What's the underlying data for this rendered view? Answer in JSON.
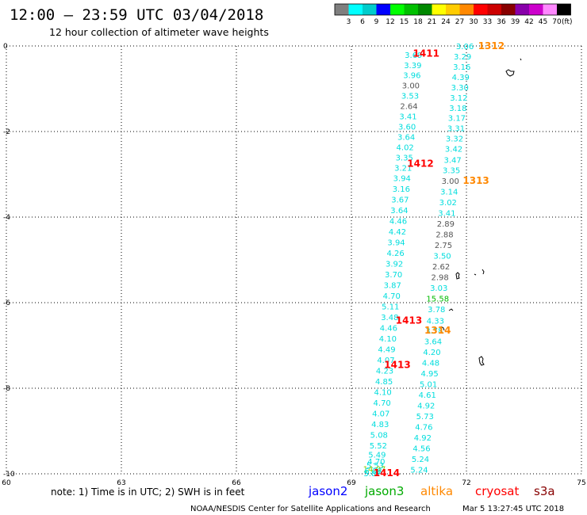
{
  "header": {
    "title": "12:00 — 23:59 UTC 03/04/2018",
    "subtitle": "12 hour collection of altimeter wave heights"
  },
  "legend": {
    "unit": "(ft)",
    "bins": [
      {
        "label": "3",
        "color": "#7f7f7f"
      },
      {
        "label": "6",
        "color": "#00ffff"
      },
      {
        "label": "9",
        "color": "#00cccc"
      },
      {
        "label": "12",
        "color": "#0000ff"
      },
      {
        "label": "15",
        "color": "#00ff00"
      },
      {
        "label": "18",
        "color": "#00c000"
      },
      {
        "label": "21",
        "color": "#008800"
      },
      {
        "label": "24",
        "color": "#ffff00"
      },
      {
        "label": "27",
        "color": "#ffcc00"
      },
      {
        "label": "30",
        "color": "#ff8800"
      },
      {
        "label": "33",
        "color": "#ff0000"
      },
      {
        "label": "36",
        "color": "#cc0000"
      },
      {
        "label": "39",
        "color": "#880000"
      },
      {
        "label": "42",
        "color": "#8800aa"
      },
      {
        "label": "45",
        "color": "#cc00cc"
      },
      {
        "label": "70",
        "color": "#ff88ff"
      },
      {
        "label": "",
        "color": "#000000"
      }
    ]
  },
  "axes": {
    "lat_ticks": [
      "0",
      "-2",
      "-4",
      "-6",
      "-8",
      "-10"
    ],
    "lon_ticks": [
      "60",
      "63",
      "66",
      "69",
      "72",
      "75"
    ]
  },
  "chart_data": {
    "type": "scatter",
    "xlabel": "",
    "ylabel": "",
    "xlim": [
      60,
      75
    ],
    "ylim": [
      -10,
      0
    ],
    "pass_labels": [
      {
        "text": "1312",
        "color": "#ff8800",
        "lon": 72.65,
        "lat": 0.0
      },
      {
        "text": "1411",
        "color": "#ff0000",
        "lon": 70.95,
        "lat": -0.18
      },
      {
        "text": "1412",
        "color": "#ff0000",
        "lon": 70.8,
        "lat": -2.75
      },
      {
        "text": "1313",
        "color": "#ff8800",
        "lon": 72.25,
        "lat": -3.15
      },
      {
        "text": "1413",
        "color": "#ff0000",
        "lon": 70.5,
        "lat": -6.42
      },
      {
        "text": "1314",
        "color": "#ff8800",
        "lon": 71.25,
        "lat": -6.65
      },
      {
        "text": "1413",
        "color": "#ff0000",
        "lon": 70.2,
        "lat": -7.45
      },
      {
        "text": "1414",
        "color": "#ff0000",
        "lon": 69.92,
        "lat": -9.98
      }
    ],
    "tracks": [
      {
        "name": "track-east",
        "start": [
          71.0,
          0.0
        ],
        "end": [
          71.2,
          0.0
        ],
        "points": [
          {
            "lon": 71.96,
            "lat": 0.0,
            "v": "3.06",
            "c": "#00dddd"
          },
          {
            "lon": 71.9,
            "lat": -0.24,
            "v": "3.29",
            "c": "#00dddd"
          },
          {
            "lon": 71.88,
            "lat": -0.48,
            "v": "3.16",
            "c": "#00dddd"
          },
          {
            "lon": 71.85,
            "lat": -0.72,
            "v": "4.39",
            "c": "#00dddd"
          },
          {
            "lon": 71.83,
            "lat": -0.96,
            "v": "3.30",
            "c": "#00dddd"
          },
          {
            "lon": 71.8,
            "lat": -1.2,
            "v": "3.12",
            "c": "#00dddd"
          },
          {
            "lon": 71.78,
            "lat": -1.44,
            "v": "3.18",
            "c": "#00dddd"
          },
          {
            "lon": 71.75,
            "lat": -1.68,
            "v": "3.17",
            "c": "#00dddd"
          },
          {
            "lon": 71.73,
            "lat": -1.92,
            "v": "3.31",
            "c": "#00dddd"
          },
          {
            "lon": 71.69,
            "lat": -2.16,
            "v": "3.32",
            "c": "#00dddd"
          },
          {
            "lon": 71.67,
            "lat": -2.4,
            "v": "3.42",
            "c": "#00dddd"
          },
          {
            "lon": 71.64,
            "lat": -2.66,
            "v": "3.47",
            "c": "#00dddd"
          },
          {
            "lon": 71.61,
            "lat": -2.9,
            "v": "3.35",
            "c": "#00dddd"
          },
          {
            "lon": 71.58,
            "lat": -3.15,
            "v": "3.00",
            "c": "#555555"
          },
          {
            "lon": 71.55,
            "lat": -3.4,
            "v": "3.14",
            "c": "#00dddd"
          },
          {
            "lon": 71.52,
            "lat": -3.65,
            "v": "3.02",
            "c": "#00dddd"
          },
          {
            "lon": 71.49,
            "lat": -3.9,
            "v": "3.41",
            "c": "#00dddd"
          },
          {
            "lon": 71.46,
            "lat": -4.15,
            "v": "2.89",
            "c": "#555555"
          },
          {
            "lon": 71.43,
            "lat": -4.4,
            "v": "2.88",
            "c": "#555555"
          },
          {
            "lon": 71.4,
            "lat": -4.65,
            "v": "2.75",
            "c": "#555555"
          },
          {
            "lon": 71.37,
            "lat": -4.9,
            "v": "3.50",
            "c": "#00dddd"
          },
          {
            "lon": 71.34,
            "lat": -5.15,
            "v": "2.62",
            "c": "#555555"
          },
          {
            "lon": 71.31,
            "lat": -5.4,
            "v": "2.98",
            "c": "#555555"
          },
          {
            "lon": 71.28,
            "lat": -5.65,
            "v": "3.03",
            "c": "#00dddd"
          },
          {
            "lon": 71.25,
            "lat": -5.9,
            "v": "15.58",
            "c": "#00bb00"
          },
          {
            "lon": 71.22,
            "lat": -6.15,
            "v": "3.78",
            "c": "#00dddd"
          },
          {
            "lon": 71.19,
            "lat": -6.42,
            "v": "4.33",
            "c": "#00dddd"
          },
          {
            "lon": 71.16,
            "lat": -6.65,
            "v": "3.78",
            "c": "#00dddd"
          },
          {
            "lon": 71.13,
            "lat": -6.9,
            "v": "3.64",
            "c": "#00dddd"
          },
          {
            "lon": 71.1,
            "lat": -7.15,
            "v": "4.20",
            "c": "#00dddd"
          },
          {
            "lon": 71.07,
            "lat": -7.4,
            "v": "4.48",
            "c": "#00dddd"
          },
          {
            "lon": 71.04,
            "lat": -7.65,
            "v": "4.95",
            "c": "#00dddd"
          },
          {
            "lon": 71.01,
            "lat": -7.9,
            "v": "5.01",
            "c": "#00dddd"
          },
          {
            "lon": 70.98,
            "lat": -8.15,
            "v": "4.61",
            "c": "#00dddd"
          },
          {
            "lon": 70.95,
            "lat": -8.4,
            "v": "4.92",
            "c": "#00dddd"
          },
          {
            "lon": 70.92,
            "lat": -8.65,
            "v": "5.73",
            "c": "#00dddd"
          },
          {
            "lon": 70.89,
            "lat": -8.9,
            "v": "4.76",
            "c": "#00dddd"
          },
          {
            "lon": 70.86,
            "lat": -9.15,
            "v": "4.92",
            "c": "#00dddd"
          },
          {
            "lon": 70.83,
            "lat": -9.4,
            "v": "4.56",
            "c": "#00dddd"
          },
          {
            "lon": 70.8,
            "lat": -9.65,
            "v": "5.24",
            "c": "#00dddd"
          },
          {
            "lon": 70.77,
            "lat": -9.9,
            "v": "5.24",
            "c": "#00dddd"
          }
        ]
      },
      {
        "name": "track-west",
        "start": [
          70.0,
          0.0
        ],
        "end": [
          70.1,
          0.0
        ],
        "points": [
          {
            "lon": 70.62,
            "lat": -0.2,
            "v": "3.69",
            "c": "#00dddd"
          },
          {
            "lon": 70.6,
            "lat": -0.44,
            "v": "3.39",
            "c": "#00dddd"
          },
          {
            "lon": 70.58,
            "lat": -0.68,
            "v": "3.96",
            "c": "#00dddd"
          },
          {
            "lon": 70.55,
            "lat": -0.92,
            "v": "3.00",
            "c": "#555555"
          },
          {
            "lon": 70.53,
            "lat": -1.16,
            "v": "3.53",
            "c": "#00dddd"
          },
          {
            "lon": 70.5,
            "lat": -1.4,
            "v": "2.64",
            "c": "#555555"
          },
          {
            "lon": 70.48,
            "lat": -1.64,
            "v": "3.41",
            "c": "#00dddd"
          },
          {
            "lon": 70.45,
            "lat": -1.88,
            "v": "3.60",
            "c": "#00dddd"
          },
          {
            "lon": 70.43,
            "lat": -2.12,
            "v": "3.64",
            "c": "#00dddd"
          },
          {
            "lon": 70.4,
            "lat": -2.36,
            "v": "4.02",
            "c": "#00dddd"
          },
          {
            "lon": 70.38,
            "lat": -2.6,
            "v": "3.35",
            "c": "#00dddd"
          },
          {
            "lon": 70.35,
            "lat": -2.84,
            "v": "3.21",
            "c": "#00dddd"
          },
          {
            "lon": 70.32,
            "lat": -3.08,
            "v": "3.94",
            "c": "#00dddd"
          },
          {
            "lon": 70.3,
            "lat": -3.33,
            "v": "3.16",
            "c": "#00dddd"
          },
          {
            "lon": 70.27,
            "lat": -3.58,
            "v": "3.67",
            "c": "#00dddd"
          },
          {
            "lon": 70.25,
            "lat": -3.83,
            "v": "3.64",
            "c": "#00dddd"
          },
          {
            "lon": 70.22,
            "lat": -4.08,
            "v": "4.46",
            "c": "#00dddd"
          },
          {
            "lon": 70.2,
            "lat": -4.33,
            "v": "4.42",
            "c": "#00dddd"
          },
          {
            "lon": 70.17,
            "lat": -4.58,
            "v": "3.94",
            "c": "#00dddd"
          },
          {
            "lon": 70.15,
            "lat": -4.83,
            "v": "4.26",
            "c": "#00dddd"
          },
          {
            "lon": 70.12,
            "lat": -5.08,
            "v": "3.92",
            "c": "#00dddd"
          },
          {
            "lon": 70.1,
            "lat": -5.33,
            "v": "3.70",
            "c": "#00dddd"
          },
          {
            "lon": 70.07,
            "lat": -5.58,
            "v": "3.87",
            "c": "#00dddd"
          },
          {
            "lon": 70.05,
            "lat": -5.83,
            "v": "4.70",
            "c": "#00dddd"
          },
          {
            "lon": 70.02,
            "lat": -6.08,
            "v": "5.11",
            "c": "#00dddd"
          },
          {
            "lon": 70.0,
            "lat": -6.33,
            "v": "3.48",
            "c": "#00dddd"
          },
          {
            "lon": 69.97,
            "lat": -6.58,
            "v": "4.46",
            "c": "#00dddd"
          },
          {
            "lon": 69.95,
            "lat": -6.83,
            "v": "4.10",
            "c": "#00dddd"
          },
          {
            "lon": 69.92,
            "lat": -7.08,
            "v": "4.49",
            "c": "#00dddd"
          },
          {
            "lon": 69.9,
            "lat": -7.33,
            "v": "4.07",
            "c": "#00dddd"
          },
          {
            "lon": 69.87,
            "lat": -7.58,
            "v": "4.23",
            "c": "#00dddd"
          },
          {
            "lon": 69.85,
            "lat": -7.83,
            "v": "4.85",
            "c": "#00dddd"
          },
          {
            "lon": 69.82,
            "lat": -8.08,
            "v": "4.10",
            "c": "#00dddd"
          },
          {
            "lon": 69.8,
            "lat": -8.33,
            "v": "4.70",
            "c": "#00dddd"
          },
          {
            "lon": 69.77,
            "lat": -8.58,
            "v": "4.07",
            "c": "#00dddd"
          },
          {
            "lon": 69.75,
            "lat": -8.83,
            "v": "4.83",
            "c": "#00dddd"
          },
          {
            "lon": 69.72,
            "lat": -9.08,
            "v": "5.08",
            "c": "#00dddd"
          },
          {
            "lon": 69.7,
            "lat": -9.33,
            "v": "5.52",
            "c": "#00dddd"
          },
          {
            "lon": 69.67,
            "lat": -9.55,
            "v": "5.49",
            "c": "#00dddd"
          },
          {
            "lon": 69.65,
            "lat": -9.7,
            "v": "4.70",
            "c": "#00dddd"
          },
          {
            "lon": 69.62,
            "lat": -9.8,
            "v": "5.53",
            "c": "#00dddd"
          },
          {
            "lon": 69.6,
            "lat": -9.88,
            "v": "14.07",
            "c": "#88cc00"
          },
          {
            "lon": 69.57,
            "lat": -9.93,
            "v": "6.08",
            "c": "#00dddd"
          },
          {
            "lon": 69.55,
            "lat": -9.98,
            "v": "5.87",
            "c": "#00dddd"
          }
        ]
      }
    ]
  },
  "footer": {
    "note": "note:  1) Time is in UTC;  2) SWH is in feet",
    "satellites": [
      {
        "name": "jason2",
        "color": "#0000ff"
      },
      {
        "name": "jason3",
        "color": "#00aa00"
      },
      {
        "name": "altika",
        "color": "#ff8800"
      },
      {
        "name": "cryosat",
        "color": "#ff0000"
      },
      {
        "name": "s3a",
        "color": "#880000"
      }
    ],
    "credit": "NOAA/NESDIS Center for Satellite Applications and Research",
    "timestamp": "Mar  5 13:27:45 UTC 2018"
  }
}
